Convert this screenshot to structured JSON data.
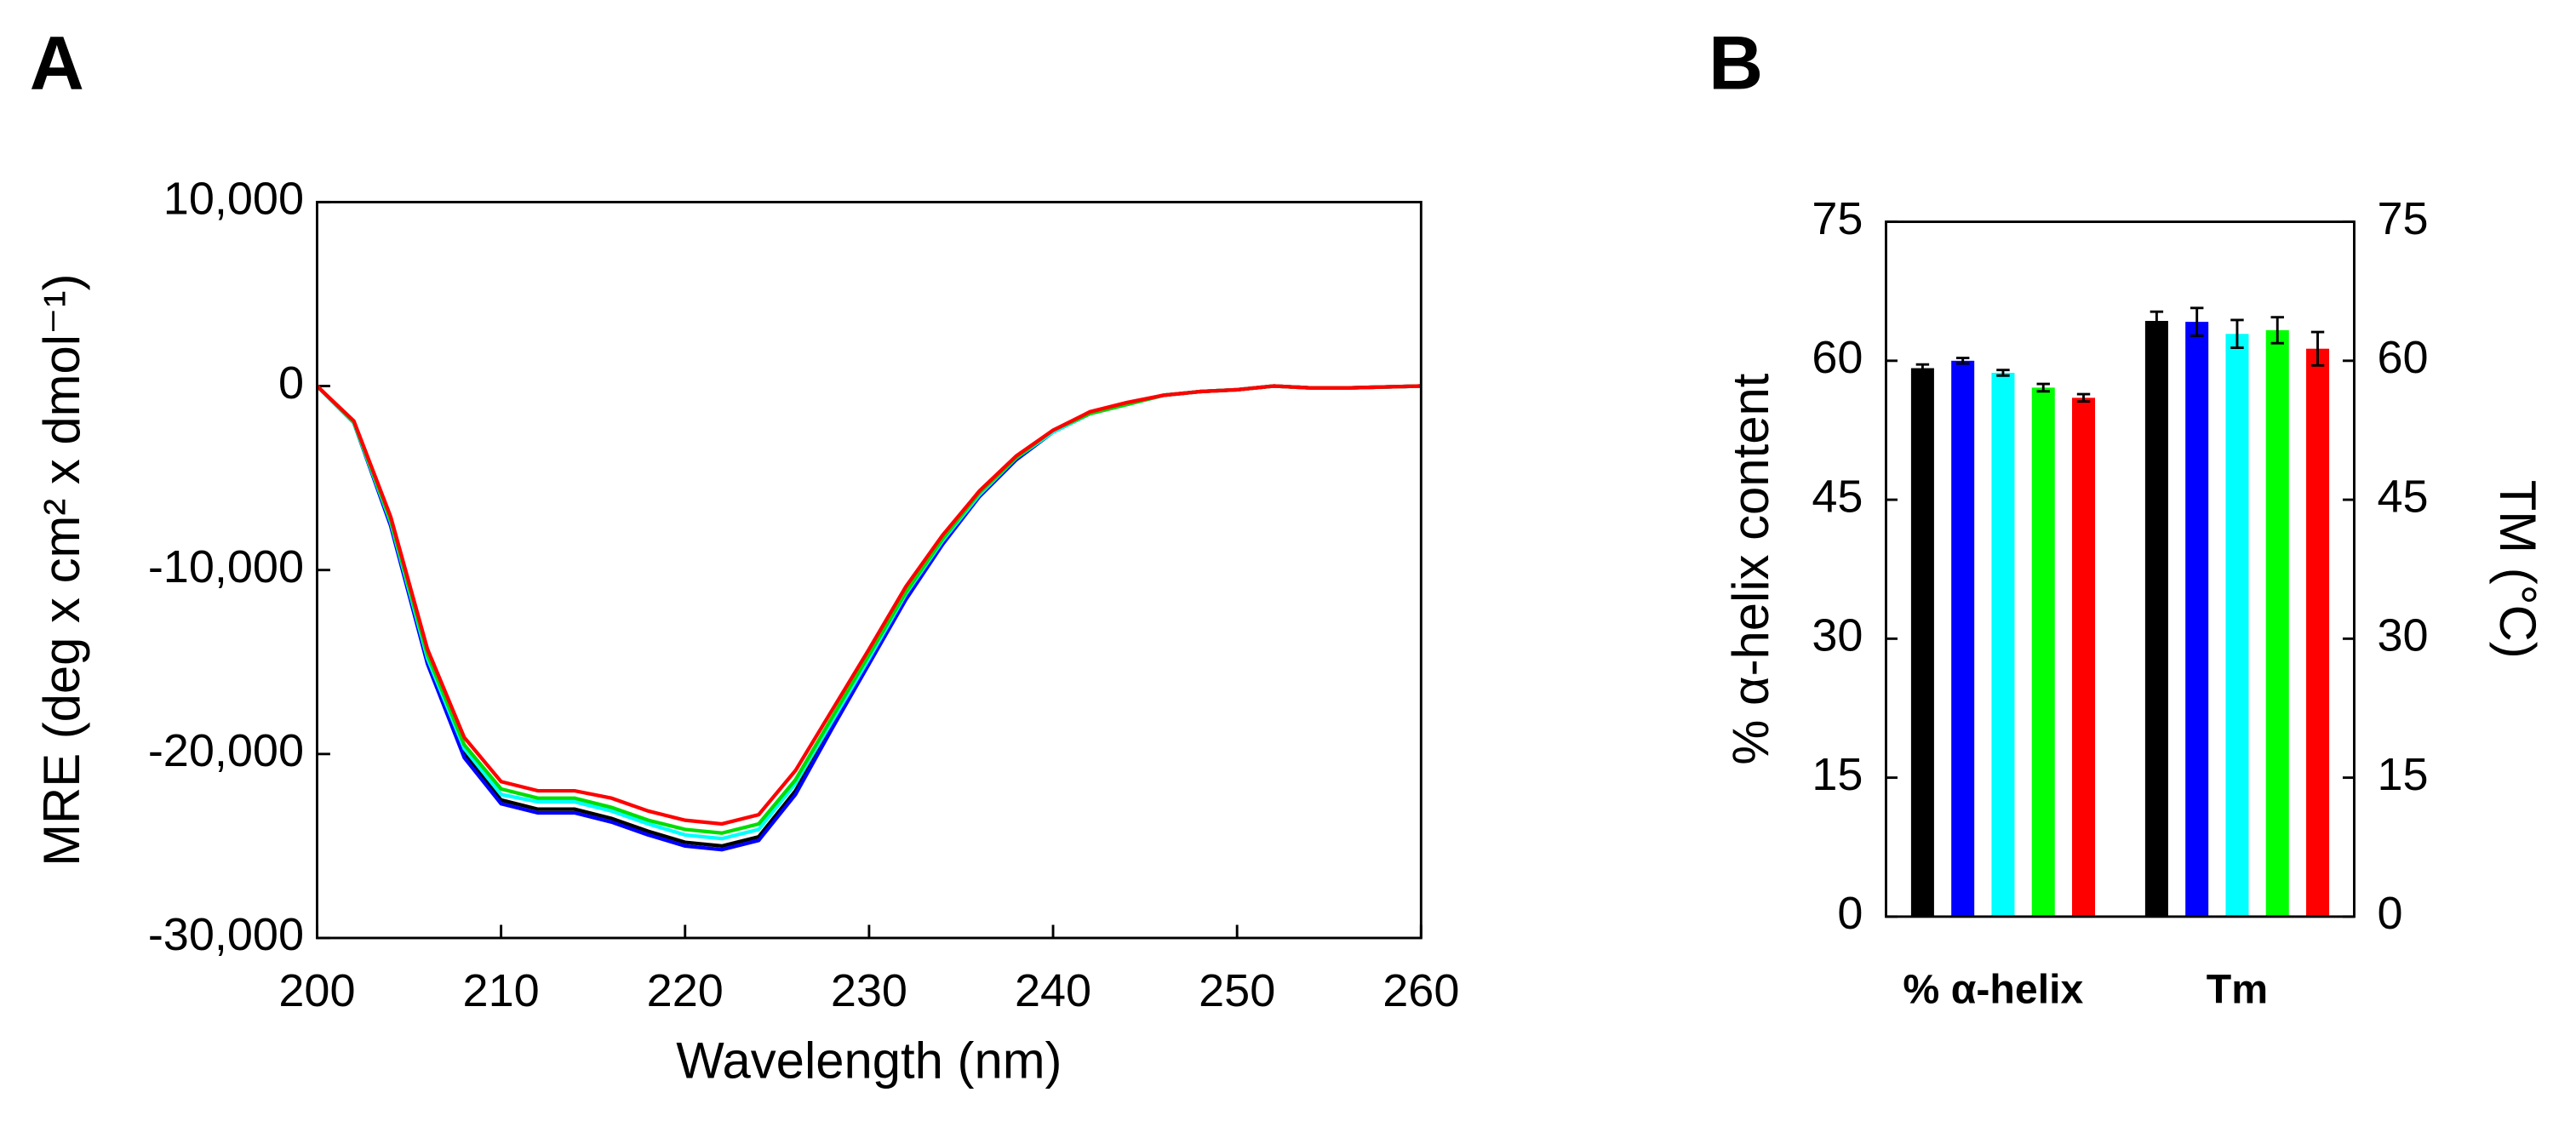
{
  "chart_data": [
    {
      "type": "line",
      "panel": "A",
      "xlabel": "Wavelength (nm)",
      "ylabel": "MRE (deg x cm² x dmol⁻¹)",
      "x": [
        200,
        202,
        204,
        206,
        208,
        210,
        212,
        214,
        216,
        218,
        220,
        222,
        224,
        226,
        228,
        230,
        232,
        234,
        236,
        238,
        240,
        242,
        244,
        246,
        248,
        250,
        252,
        254,
        256,
        258,
        260
      ],
      "xlim": [
        200,
        260
      ],
      "xticks": [
        200,
        210,
        220,
        230,
        240,
        250,
        260
      ],
      "ylim": [
        -30000,
        10000
      ],
      "yticks": [
        {
          "value": -30000,
          "label": "-30,000"
        },
        {
          "value": -20000,
          "label": "-20,000"
        },
        {
          "value": -10000,
          "label": "-10,000"
        },
        0,
        {
          "value": 10000,
          "label": "10,000"
        }
      ],
      "series": [
        {
          "color": "#000000",
          "values": [
            0,
            -2000,
            -7500,
            -15000,
            -20000,
            -22500,
            -23000,
            -23000,
            -23500,
            -24200,
            -24800,
            -25000,
            -24500,
            -22000,
            -18500,
            -15000,
            -11500,
            -8500,
            -6000,
            -4000,
            -2500,
            -1500,
            -1000,
            -500,
            -300,
            -200,
            0,
            -100,
            -100,
            -50,
            0
          ]
        },
        {
          "color": "#0000ff",
          "values": [
            0,
            -2000,
            -7600,
            -15100,
            -20200,
            -22700,
            -23200,
            -23200,
            -23700,
            -24400,
            -25000,
            -25200,
            -24700,
            -22200,
            -18600,
            -15100,
            -11600,
            -8600,
            -6000,
            -4000,
            -2500,
            -1500,
            -1000,
            -500,
            -300,
            -200,
            0,
            -100,
            -100,
            -50,
            0
          ]
        },
        {
          "color": "#00ffff",
          "values": [
            0,
            -2000,
            -7400,
            -14800,
            -19700,
            -22200,
            -22600,
            -22600,
            -23100,
            -23800,
            -24400,
            -24600,
            -24100,
            -21600,
            -18200,
            -14800,
            -11300,
            -8400,
            -5900,
            -3900,
            -2500,
            -1500,
            -1000,
            -500,
            -300,
            -200,
            0,
            -100,
            -100,
            -50,
            0
          ]
        },
        {
          "color": "#00dd00",
          "values": [
            0,
            -1950,
            -7300,
            -14600,
            -19500,
            -21900,
            -22400,
            -22400,
            -22900,
            -23600,
            -24100,
            -24300,
            -23800,
            -21400,
            -18000,
            -14600,
            -11200,
            -8300,
            -5800,
            -3900,
            -2400,
            -1500,
            -1000,
            -500,
            -300,
            -200,
            0,
            -100,
            -100,
            -50,
            0
          ]
        },
        {
          "color": "#ff0000",
          "values": [
            0,
            -1900,
            -7100,
            -14300,
            -19100,
            -21500,
            -22000,
            -22000,
            -22400,
            -23100,
            -23600,
            -23800,
            -23300,
            -20900,
            -17600,
            -14300,
            -10900,
            -8100,
            -5700,
            -3800,
            -2400,
            -1400,
            -900,
            -500,
            -300,
            -200,
            0,
            -100,
            -100,
            -50,
            0
          ]
        }
      ]
    },
    {
      "type": "bar",
      "panel": "B",
      "ylabel": "% α-helix content",
      "y2label": "TM (°C)",
      "categories": [
        "% α-helix",
        "Tm"
      ],
      "ylim": [
        0,
        75
      ],
      "yticks": [
        0,
        15,
        30,
        45,
        60,
        75
      ],
      "y2lim": [
        0,
        75
      ],
      "y2ticks": [
        0,
        15,
        30,
        45,
        60,
        75
      ],
      "series": [
        {
          "color": "#000000",
          "values": [
            59.2,
            64.3
          ],
          "errors": [
            0.4,
            1.0
          ]
        },
        {
          "color": "#0000ff",
          "values": [
            60.0,
            64.2
          ],
          "errors": [
            0.3,
            1.5
          ]
        },
        {
          "color": "#00ffff",
          "values": [
            58.7,
            62.9
          ],
          "errors": [
            0.3,
            1.5
          ]
        },
        {
          "color": "#00ff00",
          "values": [
            57.1,
            63.3
          ],
          "errors": [
            0.4,
            1.4
          ]
        },
        {
          "color": "#ff0000",
          "values": [
            56.0,
            61.3
          ],
          "errors": [
            0.4,
            1.8
          ]
        }
      ]
    }
  ]
}
